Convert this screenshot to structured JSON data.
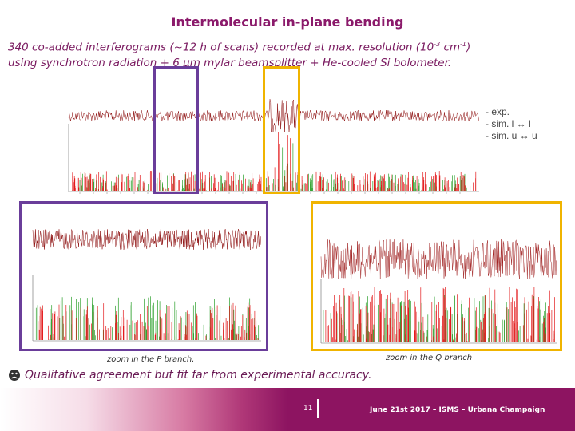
{
  "slide": {
    "title": "Intermolecular in-plane bending",
    "subtitle_line1_pre": "340 co-added interferograms (~12 h of scans) recorded at max. resolution  (10",
    "subtitle_sup1": "-3",
    "subtitle_mid": " cm",
    "subtitle_sup2": "-1",
    "subtitle_line1_post": ")",
    "subtitle_line2": "using synchrotron radiation + 6 µm mylar beamsplitter + He-cooled Si bolometer.",
    "legend": [
      "- exp.",
      "- sim. l ↔ l",
      "- sim. u ↔ u"
    ],
    "zoom_p_caption": "zoom in the P branch.",
    "zoom_q_caption": "zoom in the Q branch",
    "conclusion": "Qualitative agreement but fit far from experimental accuracy.",
    "page_number": "11",
    "footer": "June 21st 2017 – ISMS – Urbana Champaign"
  },
  "colors": {
    "experiment": "#8b0a0a",
    "sim_lower": "#e31a1c",
    "sim_upper": "#2ca02c",
    "p_branch_box": "#6a3d9a",
    "q_branch_box": "#f0b400",
    "accent": "#8d1461"
  },
  "icons": {
    "conclusion": "sad-face-icon"
  }
}
